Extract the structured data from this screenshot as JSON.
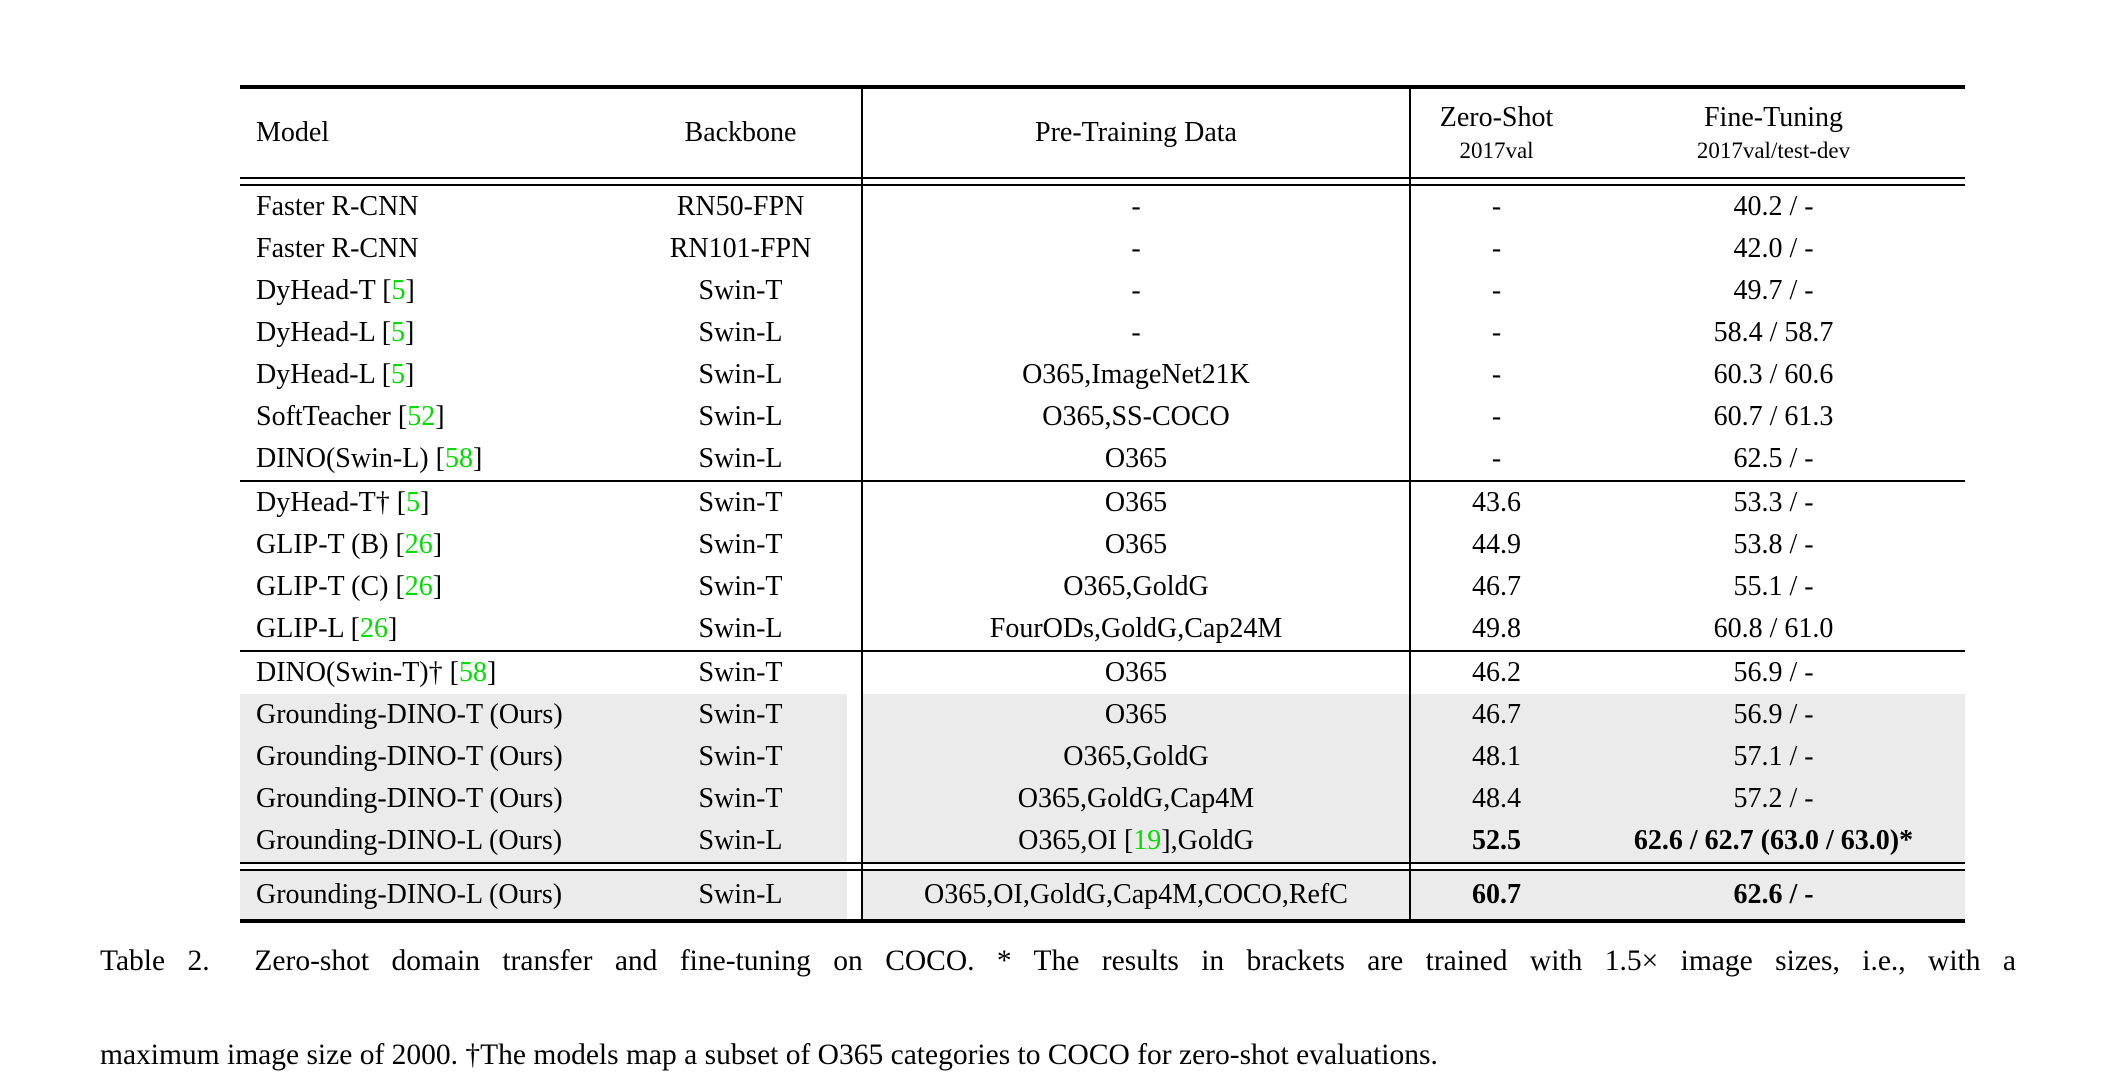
{
  "table": {
    "columns": {
      "model": "Model",
      "backbone": "Backbone",
      "pretrain": "Pre-Training Data",
      "zero_shot": {
        "title": "Zero-Shot",
        "sub": "2017val"
      },
      "fine_tuning": {
        "title": "Fine-Tuning",
        "sub": "2017val/test-dev"
      }
    },
    "citation_format": {
      "open": " [",
      "close": "]"
    },
    "sections": [
      {
        "divider": "none",
        "rows": [
          {
            "model": "Faster R-CNN",
            "model_cite": null,
            "backbone": "RN50-FPN",
            "pretrain": "-",
            "pretrain_cite": null,
            "pretrain_after": null,
            "zero_shot": "-",
            "fine_tuning": "40.2 / -",
            "bold": false,
            "highlight": false
          },
          {
            "model": "Faster R-CNN",
            "model_cite": null,
            "backbone": "RN101-FPN",
            "pretrain": "-",
            "pretrain_cite": null,
            "pretrain_after": null,
            "zero_shot": "-",
            "fine_tuning": "42.0 / -",
            "bold": false,
            "highlight": false
          },
          {
            "model": "DyHead-T",
            "model_cite": "5",
            "backbone": "Swin-T",
            "pretrain": "-",
            "pretrain_cite": null,
            "pretrain_after": null,
            "zero_shot": "-",
            "fine_tuning": "49.7 / -",
            "bold": false,
            "highlight": false
          },
          {
            "model": "DyHead-L",
            "model_cite": "5",
            "backbone": "Swin-L",
            "pretrain": "-",
            "pretrain_cite": null,
            "pretrain_after": null,
            "zero_shot": "-",
            "fine_tuning": "58.4 / 58.7",
            "bold": false,
            "highlight": false
          },
          {
            "model": "DyHead-L",
            "model_cite": "5",
            "backbone": "Swin-L",
            "pretrain": "O365,ImageNet21K",
            "pretrain_cite": null,
            "pretrain_after": null,
            "zero_shot": "-",
            "fine_tuning": "60.3 / 60.6",
            "bold": false,
            "highlight": false
          },
          {
            "model": "SoftTeacher",
            "model_cite": "52",
            "backbone": "Swin-L",
            "pretrain": "O365,SS-COCO",
            "pretrain_cite": null,
            "pretrain_after": null,
            "zero_shot": "-",
            "fine_tuning": "60.7 / 61.3",
            "bold": false,
            "highlight": false
          },
          {
            "model": "DINO(Swin-L)",
            "model_cite": "58",
            "backbone": "Swin-L",
            "pretrain": "O365",
            "pretrain_cite": null,
            "pretrain_after": null,
            "zero_shot": "-",
            "fine_tuning": "62.5 / -",
            "bold": false,
            "highlight": false
          }
        ]
      },
      {
        "divider": "single",
        "rows": [
          {
            "model": "DyHead-T†",
            "model_cite": "5",
            "backbone": "Swin-T",
            "pretrain": "O365",
            "pretrain_cite": null,
            "pretrain_after": null,
            "zero_shot": "43.6",
            "fine_tuning": "53.3 / -",
            "bold": false,
            "highlight": false
          },
          {
            "model": "GLIP-T (B)",
            "model_cite": "26",
            "backbone": "Swin-T",
            "pretrain": "O365",
            "pretrain_cite": null,
            "pretrain_after": null,
            "zero_shot": "44.9",
            "fine_tuning": "53.8 / -",
            "bold": false,
            "highlight": false
          },
          {
            "model": "GLIP-T (C)",
            "model_cite": "26",
            "backbone": "Swin-T",
            "pretrain": "O365,GoldG",
            "pretrain_cite": null,
            "pretrain_after": null,
            "zero_shot": "46.7",
            "fine_tuning": "55.1 / -",
            "bold": false,
            "highlight": false
          },
          {
            "model": "GLIP-L",
            "model_cite": "26",
            "backbone": "Swin-L",
            "pretrain": "FourODs,GoldG,Cap24M",
            "pretrain_cite": null,
            "pretrain_after": null,
            "zero_shot": "49.8",
            "fine_tuning": "60.8 / 61.0",
            "bold": false,
            "highlight": false
          }
        ]
      },
      {
        "divider": "single",
        "rows": [
          {
            "model": "DINO(Swin-T)†",
            "model_cite": "58",
            "backbone": "Swin-T",
            "pretrain": "O365",
            "pretrain_cite": null,
            "pretrain_after": null,
            "zero_shot": "46.2",
            "fine_tuning": "56.9 / -",
            "bold": false,
            "highlight": false
          },
          {
            "model": "Grounding-DINO-T (Ours)",
            "model_cite": null,
            "backbone": "Swin-T",
            "pretrain": "O365",
            "pretrain_cite": null,
            "pretrain_after": null,
            "zero_shot": "46.7",
            "fine_tuning": "56.9 / -",
            "bold": false,
            "highlight": true
          },
          {
            "model": "Grounding-DINO-T (Ours)",
            "model_cite": null,
            "backbone": "Swin-T",
            "pretrain": "O365,GoldG",
            "pretrain_cite": null,
            "pretrain_after": null,
            "zero_shot": "48.1",
            "fine_tuning": "57.1 / -",
            "bold": false,
            "highlight": true
          },
          {
            "model": "Grounding-DINO-T (Ours)",
            "model_cite": null,
            "backbone": "Swin-T",
            "pretrain": "O365,GoldG,Cap4M",
            "pretrain_cite": null,
            "pretrain_after": null,
            "zero_shot": "48.4",
            "fine_tuning": "57.2 / -",
            "bold": false,
            "highlight": true
          },
          {
            "model": "Grounding-DINO-L (Ours)",
            "model_cite": null,
            "backbone": "Swin-L",
            "pretrain": "O365,OI",
            "pretrain_cite": "19",
            "pretrain_after": ",GoldG",
            "zero_shot": "52.5",
            "fine_tuning": "62.6 / 62.7 (63.0 / 63.0)*",
            "bold": true,
            "highlight": true
          }
        ]
      },
      {
        "divider": "double",
        "rows": [
          {
            "model": "Grounding-DINO-L (Ours)",
            "model_cite": null,
            "backbone": "Swin-L",
            "pretrain": "O365,OI,GoldG,Cap4M,COCO,RefC",
            "pretrain_cite": null,
            "pretrain_after": null,
            "zero_shot": "60.7",
            "fine_tuning": "62.6 / -",
            "bold": true,
            "highlight": true
          }
        ]
      }
    ]
  },
  "caption": {
    "line1": "Table 2.  Zero-shot domain transfer and fine-tuning on COCO. * The results in brackets are trained with 1.5× image sizes, i.e., with a",
    "line2": "maximum image size of 2000. †The models map a subset of O365 categories to COCO for zero-shot evaluations."
  },
  "colors": {
    "citation_green": "#00dd00",
    "row_highlight": "#ebebeb",
    "rule_black": "#000000"
  }
}
